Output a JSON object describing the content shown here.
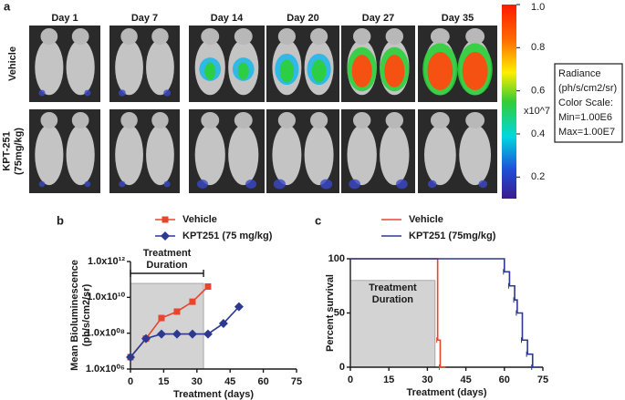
{
  "panel_a": {
    "label": "a",
    "days": [
      "Day 1",
      "Day 7",
      "Day 14",
      "Day 20",
      "Day 27",
      "Day 35"
    ],
    "rows": [
      [
        "Vehicle"
      ],
      [
        "KPT-251",
        "(75mg/kg)"
      ]
    ],
    "colorbar": {
      "range": [
        0.1,
        1.0
      ],
      "ticks": [
        {
          "value": 1.0,
          "label": "1.0"
        },
        0.8,
        0.6,
        0.4,
        0.2
      ],
      "unit": "x10^7"
    },
    "info_box": [
      "Radiance",
      "(ph/s/cm2/sr)",
      "Color Scale:",
      "Min=1.00E6",
      "Max=1.00E7"
    ]
  },
  "chart_data": [
    {
      "type": "line",
      "panel_label": "b",
      "y_label": [
        "Mean Bioluminescence",
        "(ph/s/cm2/sr)"
      ],
      "x_label": "Treatment (days)",
      "log_y": true,
      "xlim": [
        0,
        75
      ],
      "xticks": [
        0,
        15,
        30,
        45,
        60,
        75
      ],
      "ylim": [
        1000000,
        1000000000000
      ],
      "yticks": [
        {
          "value": 1000000,
          "label": "1.0x10⁰⁶"
        },
        {
          "value": 100000000,
          "label": "1.0x10⁰⁸"
        },
        {
          "value": 10000000000,
          "label": "1.0x10¹⁰"
        },
        {
          "value": 1000000000000,
          "label": "1.0x10¹²"
        }
      ],
      "annotation": [
        "Treatment",
        "Duration"
      ],
      "shaded_x": [
        0,
        33
      ],
      "shaded_y": [
        1000000,
        60000000000
      ],
      "series": [
        {
          "name": "Vehicle",
          "color": "#e8452c",
          "marker": "square",
          "x": [
            0,
            7,
            14,
            21,
            28,
            35
          ],
          "values": [
            4600000,
            50000000,
            700000000,
            1600000000,
            5700000000,
            40000000000
          ]
        },
        {
          "name": "KPT251 (75 mg/kg)",
          "color": "#2b3990",
          "marker": "diamond",
          "x": [
            0,
            7,
            14,
            21,
            28,
            35,
            42,
            49
          ],
          "values": [
            4600000,
            50000000,
            90000000,
            90000000,
            90000000,
            90000000,
            350000000,
            3000000000
          ]
        }
      ]
    },
    {
      "type": "step",
      "panel_label": "c",
      "y_label": [
        "Percent survival"
      ],
      "x_label": "Treatment (days)",
      "xlim": [
        0,
        75
      ],
      "xticks": [
        0,
        15,
        30,
        45,
        60,
        75
      ],
      "ylim": [
        0,
        100
      ],
      "yticks": [
        0,
        50,
        100
      ],
      "annotation": [
        "Treatment",
        "Duration"
      ],
      "shaded_x": [
        0,
        33
      ],
      "shaded_y": [
        0,
        80
      ],
      "series": [
        {
          "name": "Vehicle",
          "color": "#e8452c",
          "x": [
            0,
            34,
            35
          ],
          "values": [
            100,
            25,
            0
          ]
        },
        {
          "name": "KPT251 (75mg/kg)",
          "color": "#2b3990",
          "x": [
            0,
            60,
            62,
            64,
            65,
            67,
            69,
            71
          ],
          "values": [
            100,
            88,
            75,
            62,
            50,
            25,
            12,
            0
          ]
        }
      ]
    }
  ]
}
